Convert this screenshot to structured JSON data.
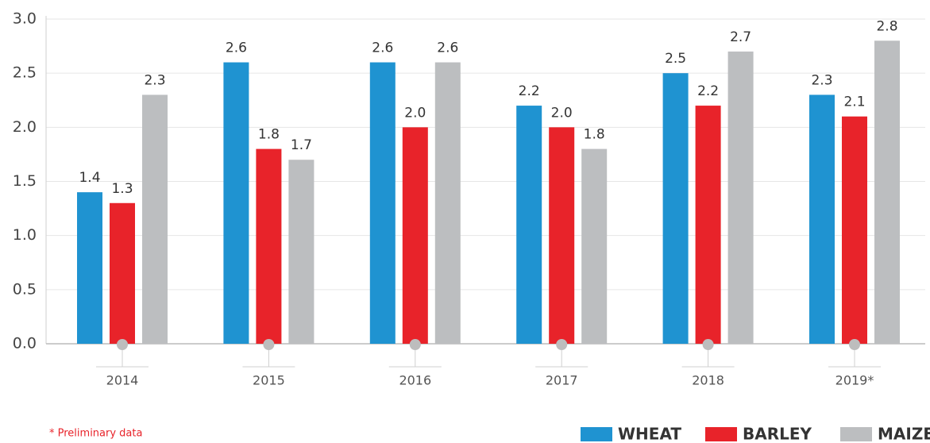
{
  "chart_data": {
    "type": "bar",
    "categories": [
      "2014",
      "2015",
      "2016",
      "2017",
      "2018",
      "2019*"
    ],
    "series": [
      {
        "name": "WHEAT",
        "color": "#1f93d1",
        "values": [
          1.4,
          2.6,
          2.6,
          2.2,
          2.5,
          2.3
        ],
        "value_labels": [
          "1.4",
          "2.6",
          "2.6",
          "2.2",
          "2.5",
          "2.3"
        ]
      },
      {
        "name": "BARLEY",
        "color": "#e8232a",
        "values": [
          1.3,
          1.8,
          2,
          2,
          2.2,
          2.1
        ],
        "value_labels": [
          "1.3",
          "1.8",
          "2.0",
          "2.0",
          "2.2",
          "2.1"
        ]
      },
      {
        "name": "MAIZE",
        "color": "#bcbec0",
        "values": [
          2.3,
          1.7,
          2.6,
          1.8,
          2.7,
          2.8
        ],
        "value_labels": [
          "2.3",
          "1.7",
          "2.6",
          "1.8",
          "2.7",
          "2.8"
        ]
      }
    ],
    "ylim": [
      0,
      3
    ],
    "yticks": [
      {
        "value": 0,
        "label": "0.0"
      },
      0.5,
      {
        "value": 1,
        "label": "1.0"
      },
      1.5,
      {
        "value": 2,
        "label": "2.0"
      },
      2.5,
      {
        "value": 3,
        "label": "3.0"
      }
    ],
    "grid": true,
    "legend": "bottom-right",
    "footnote": "* Preliminary data"
  }
}
